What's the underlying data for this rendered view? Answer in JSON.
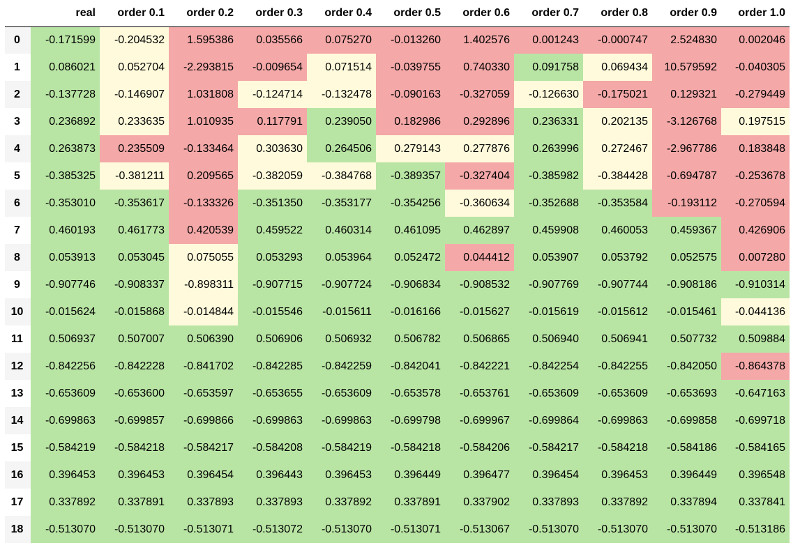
{
  "table": {
    "index_header": "",
    "columns": [
      "real",
      "order 0.1",
      "order 0.2",
      "order 0.3",
      "order 0.4",
      "order 0.5",
      "order 0.6",
      "order 0.7",
      "order 0.8",
      "order 0.9",
      "order 1.0"
    ],
    "status_colors": {
      "g": "#b9e5a4",
      "r": "#f4a8a8",
      "y": "#fefadb"
    },
    "rows": [
      {
        "index": "0",
        "cells": [
          {
            "v": "-0.171599",
            "c": "g"
          },
          {
            "v": "-0.204532",
            "c": "y"
          },
          {
            "v": "1.595386",
            "c": "r"
          },
          {
            "v": "0.035566",
            "c": "r"
          },
          {
            "v": "0.075270",
            "c": "r"
          },
          {
            "v": "-0.013260",
            "c": "r"
          },
          {
            "v": "1.402576",
            "c": "r"
          },
          {
            "v": "0.001243",
            "c": "r"
          },
          {
            "v": "-0.000747",
            "c": "r"
          },
          {
            "v": "2.524830",
            "c": "r"
          },
          {
            "v": "0.002046",
            "c": "r"
          }
        ]
      },
      {
        "index": "1",
        "cells": [
          {
            "v": "0.086021",
            "c": "g"
          },
          {
            "v": "0.052704",
            "c": "y"
          },
          {
            "v": "-2.293815",
            "c": "r"
          },
          {
            "v": "-0.009654",
            "c": "r"
          },
          {
            "v": "0.071514",
            "c": "y"
          },
          {
            "v": "-0.039755",
            "c": "r"
          },
          {
            "v": "0.740330",
            "c": "r"
          },
          {
            "v": "0.091758",
            "c": "g"
          },
          {
            "v": "0.069434",
            "c": "y"
          },
          {
            "v": "10.579592",
            "c": "r"
          },
          {
            "v": "-0.040305",
            "c": "r"
          }
        ]
      },
      {
        "index": "2",
        "cells": [
          {
            "v": "-0.137728",
            "c": "g"
          },
          {
            "v": "-0.146907",
            "c": "y"
          },
          {
            "v": "1.031808",
            "c": "r"
          },
          {
            "v": "-0.124714",
            "c": "y"
          },
          {
            "v": "-0.132478",
            "c": "y"
          },
          {
            "v": "-0.090163",
            "c": "r"
          },
          {
            "v": "-0.327059",
            "c": "r"
          },
          {
            "v": "-0.126630",
            "c": "y"
          },
          {
            "v": "-0.175021",
            "c": "r"
          },
          {
            "v": "0.129321",
            "c": "r"
          },
          {
            "v": "-0.279449",
            "c": "r"
          }
        ]
      },
      {
        "index": "3",
        "cells": [
          {
            "v": "0.236892",
            "c": "g"
          },
          {
            "v": "0.233635",
            "c": "y"
          },
          {
            "v": "1.010935",
            "c": "r"
          },
          {
            "v": "0.117791",
            "c": "r"
          },
          {
            "v": "0.239050",
            "c": "g"
          },
          {
            "v": "0.182986",
            "c": "r"
          },
          {
            "v": "0.292896",
            "c": "r"
          },
          {
            "v": "0.236331",
            "c": "g"
          },
          {
            "v": "0.202135",
            "c": "y"
          },
          {
            "v": "-3.126768",
            "c": "r"
          },
          {
            "v": "0.197515",
            "c": "y"
          }
        ]
      },
      {
        "index": "4",
        "cells": [
          {
            "v": "0.263873",
            "c": "g"
          },
          {
            "v": "0.235509",
            "c": "r"
          },
          {
            "v": "-0.133464",
            "c": "r"
          },
          {
            "v": "0.303630",
            "c": "y"
          },
          {
            "v": "0.264506",
            "c": "g"
          },
          {
            "v": "0.279143",
            "c": "y"
          },
          {
            "v": "0.277876",
            "c": "y"
          },
          {
            "v": "0.263996",
            "c": "g"
          },
          {
            "v": "0.272467",
            "c": "y"
          },
          {
            "v": "-2.967786",
            "c": "r"
          },
          {
            "v": "0.183848",
            "c": "r"
          }
        ]
      },
      {
        "index": "5",
        "cells": [
          {
            "v": "-0.385325",
            "c": "g"
          },
          {
            "v": "-0.381211",
            "c": "y"
          },
          {
            "v": "0.209565",
            "c": "r"
          },
          {
            "v": "-0.382059",
            "c": "y"
          },
          {
            "v": "-0.384768",
            "c": "y"
          },
          {
            "v": "-0.389357",
            "c": "g"
          },
          {
            "v": "-0.327404",
            "c": "r"
          },
          {
            "v": "-0.385982",
            "c": "g"
          },
          {
            "v": "-0.384428",
            "c": "y"
          },
          {
            "v": "-0.694787",
            "c": "r"
          },
          {
            "v": "-0.253678",
            "c": "r"
          }
        ]
      },
      {
        "index": "6",
        "cells": [
          {
            "v": "-0.353010",
            "c": "g"
          },
          {
            "v": "-0.353617",
            "c": "g"
          },
          {
            "v": "-0.133326",
            "c": "r"
          },
          {
            "v": "-0.351350",
            "c": "g"
          },
          {
            "v": "-0.353177",
            "c": "g"
          },
          {
            "v": "-0.354256",
            "c": "g"
          },
          {
            "v": "-0.360634",
            "c": "y"
          },
          {
            "v": "-0.352688",
            "c": "g"
          },
          {
            "v": "-0.353584",
            "c": "g"
          },
          {
            "v": "-0.193112",
            "c": "r"
          },
          {
            "v": "-0.270594",
            "c": "r"
          }
        ]
      },
      {
        "index": "7",
        "cells": [
          {
            "v": "0.460193",
            "c": "g"
          },
          {
            "v": "0.461773",
            "c": "g"
          },
          {
            "v": "0.420539",
            "c": "r"
          },
          {
            "v": "0.459522",
            "c": "g"
          },
          {
            "v": "0.460314",
            "c": "g"
          },
          {
            "v": "0.461095",
            "c": "g"
          },
          {
            "v": "0.462897",
            "c": "g"
          },
          {
            "v": "0.459908",
            "c": "g"
          },
          {
            "v": "0.460053",
            "c": "g"
          },
          {
            "v": "0.459367",
            "c": "g"
          },
          {
            "v": "0.426906",
            "c": "r"
          }
        ]
      },
      {
        "index": "8",
        "cells": [
          {
            "v": "0.053913",
            "c": "g"
          },
          {
            "v": "0.053045",
            "c": "g"
          },
          {
            "v": "0.075055",
            "c": "y"
          },
          {
            "v": "0.053293",
            "c": "g"
          },
          {
            "v": "0.053964",
            "c": "g"
          },
          {
            "v": "0.052472",
            "c": "g"
          },
          {
            "v": "0.044412",
            "c": "r"
          },
          {
            "v": "0.053907",
            "c": "g"
          },
          {
            "v": "0.053792",
            "c": "g"
          },
          {
            "v": "0.052575",
            "c": "g"
          },
          {
            "v": "0.007280",
            "c": "r"
          }
        ]
      },
      {
        "index": "9",
        "cells": [
          {
            "v": "-0.907746",
            "c": "g"
          },
          {
            "v": "-0.908337",
            "c": "g"
          },
          {
            "v": "-0.898311",
            "c": "y"
          },
          {
            "v": "-0.907715",
            "c": "g"
          },
          {
            "v": "-0.907724",
            "c": "g"
          },
          {
            "v": "-0.906834",
            "c": "g"
          },
          {
            "v": "-0.908532",
            "c": "g"
          },
          {
            "v": "-0.907769",
            "c": "g"
          },
          {
            "v": "-0.907744",
            "c": "g"
          },
          {
            "v": "-0.908186",
            "c": "g"
          },
          {
            "v": "-0.910314",
            "c": "g"
          }
        ]
      },
      {
        "index": "10",
        "cells": [
          {
            "v": "-0.015624",
            "c": "g"
          },
          {
            "v": "-0.015868",
            "c": "g"
          },
          {
            "v": "-0.014844",
            "c": "y"
          },
          {
            "v": "-0.015546",
            "c": "g"
          },
          {
            "v": "-0.015611",
            "c": "g"
          },
          {
            "v": "-0.016166",
            "c": "g"
          },
          {
            "v": "-0.015627",
            "c": "g"
          },
          {
            "v": "-0.015619",
            "c": "g"
          },
          {
            "v": "-0.015612",
            "c": "g"
          },
          {
            "v": "-0.015461",
            "c": "g"
          },
          {
            "v": "-0.044136",
            "c": "y"
          }
        ]
      },
      {
        "index": "11",
        "cells": [
          {
            "v": "0.506937",
            "c": "g"
          },
          {
            "v": "0.507007",
            "c": "g"
          },
          {
            "v": "0.506390",
            "c": "g"
          },
          {
            "v": "0.506906",
            "c": "g"
          },
          {
            "v": "0.506932",
            "c": "g"
          },
          {
            "v": "0.506782",
            "c": "g"
          },
          {
            "v": "0.506865",
            "c": "g"
          },
          {
            "v": "0.506940",
            "c": "g"
          },
          {
            "v": "0.506941",
            "c": "g"
          },
          {
            "v": "0.507732",
            "c": "g"
          },
          {
            "v": "0.509884",
            "c": "g"
          }
        ]
      },
      {
        "index": "12",
        "cells": [
          {
            "v": "-0.842256",
            "c": "g"
          },
          {
            "v": "-0.842228",
            "c": "g"
          },
          {
            "v": "-0.841702",
            "c": "g"
          },
          {
            "v": "-0.842285",
            "c": "g"
          },
          {
            "v": "-0.842259",
            "c": "g"
          },
          {
            "v": "-0.842041",
            "c": "g"
          },
          {
            "v": "-0.842221",
            "c": "g"
          },
          {
            "v": "-0.842254",
            "c": "g"
          },
          {
            "v": "-0.842255",
            "c": "g"
          },
          {
            "v": "-0.842050",
            "c": "g"
          },
          {
            "v": "-0.864378",
            "c": "r"
          }
        ]
      },
      {
        "index": "13",
        "cells": [
          {
            "v": "-0.653609",
            "c": "g"
          },
          {
            "v": "-0.653600",
            "c": "g"
          },
          {
            "v": "-0.653597",
            "c": "g"
          },
          {
            "v": "-0.653655",
            "c": "g"
          },
          {
            "v": "-0.653609",
            "c": "g"
          },
          {
            "v": "-0.653578",
            "c": "g"
          },
          {
            "v": "-0.653761",
            "c": "g"
          },
          {
            "v": "-0.653609",
            "c": "g"
          },
          {
            "v": "-0.653609",
            "c": "g"
          },
          {
            "v": "-0.653693",
            "c": "g"
          },
          {
            "v": "-0.647163",
            "c": "g"
          }
        ]
      },
      {
        "index": "14",
        "cells": [
          {
            "v": "-0.699863",
            "c": "g"
          },
          {
            "v": "-0.699857",
            "c": "g"
          },
          {
            "v": "-0.699866",
            "c": "g"
          },
          {
            "v": "-0.699863",
            "c": "g"
          },
          {
            "v": "-0.699863",
            "c": "g"
          },
          {
            "v": "-0.699798",
            "c": "g"
          },
          {
            "v": "-0.699967",
            "c": "g"
          },
          {
            "v": "-0.699864",
            "c": "g"
          },
          {
            "v": "-0.699863",
            "c": "g"
          },
          {
            "v": "-0.699858",
            "c": "g"
          },
          {
            "v": "-0.699718",
            "c": "g"
          }
        ]
      },
      {
        "index": "15",
        "cells": [
          {
            "v": "-0.584219",
            "c": "g"
          },
          {
            "v": "-0.584218",
            "c": "g"
          },
          {
            "v": "-0.584217",
            "c": "g"
          },
          {
            "v": "-0.584208",
            "c": "g"
          },
          {
            "v": "-0.584219",
            "c": "g"
          },
          {
            "v": "-0.584218",
            "c": "g"
          },
          {
            "v": "-0.584206",
            "c": "g"
          },
          {
            "v": "-0.584217",
            "c": "g"
          },
          {
            "v": "-0.584218",
            "c": "g"
          },
          {
            "v": "-0.584186",
            "c": "g"
          },
          {
            "v": "-0.584165",
            "c": "g"
          }
        ]
      },
      {
        "index": "16",
        "cells": [
          {
            "v": "0.396453",
            "c": "g"
          },
          {
            "v": "0.396453",
            "c": "g"
          },
          {
            "v": "0.396454",
            "c": "g"
          },
          {
            "v": "0.396443",
            "c": "g"
          },
          {
            "v": "0.396453",
            "c": "g"
          },
          {
            "v": "0.396449",
            "c": "g"
          },
          {
            "v": "0.396477",
            "c": "g"
          },
          {
            "v": "0.396454",
            "c": "g"
          },
          {
            "v": "0.396453",
            "c": "g"
          },
          {
            "v": "0.396449",
            "c": "g"
          },
          {
            "v": "0.396548",
            "c": "g"
          }
        ]
      },
      {
        "index": "17",
        "cells": [
          {
            "v": "0.337892",
            "c": "g"
          },
          {
            "v": "0.337891",
            "c": "g"
          },
          {
            "v": "0.337893",
            "c": "g"
          },
          {
            "v": "0.337893",
            "c": "g"
          },
          {
            "v": "0.337892",
            "c": "g"
          },
          {
            "v": "0.337891",
            "c": "g"
          },
          {
            "v": "0.337902",
            "c": "g"
          },
          {
            "v": "0.337893",
            "c": "g"
          },
          {
            "v": "0.337892",
            "c": "g"
          },
          {
            "v": "0.337894",
            "c": "g"
          },
          {
            "v": "0.337841",
            "c": "g"
          }
        ]
      },
      {
        "index": "18",
        "cells": [
          {
            "v": "-0.513070",
            "c": "g"
          },
          {
            "v": "-0.513070",
            "c": "g"
          },
          {
            "v": "-0.513071",
            "c": "g"
          },
          {
            "v": "-0.513072",
            "c": "g"
          },
          {
            "v": "-0.513070",
            "c": "g"
          },
          {
            "v": "-0.513071",
            "c": "g"
          },
          {
            "v": "-0.513067",
            "c": "g"
          },
          {
            "v": "-0.513070",
            "c": "g"
          },
          {
            "v": "-0.513070",
            "c": "g"
          },
          {
            "v": "-0.513070",
            "c": "g"
          },
          {
            "v": "-0.513186",
            "c": "g"
          }
        ]
      }
    ]
  }
}
